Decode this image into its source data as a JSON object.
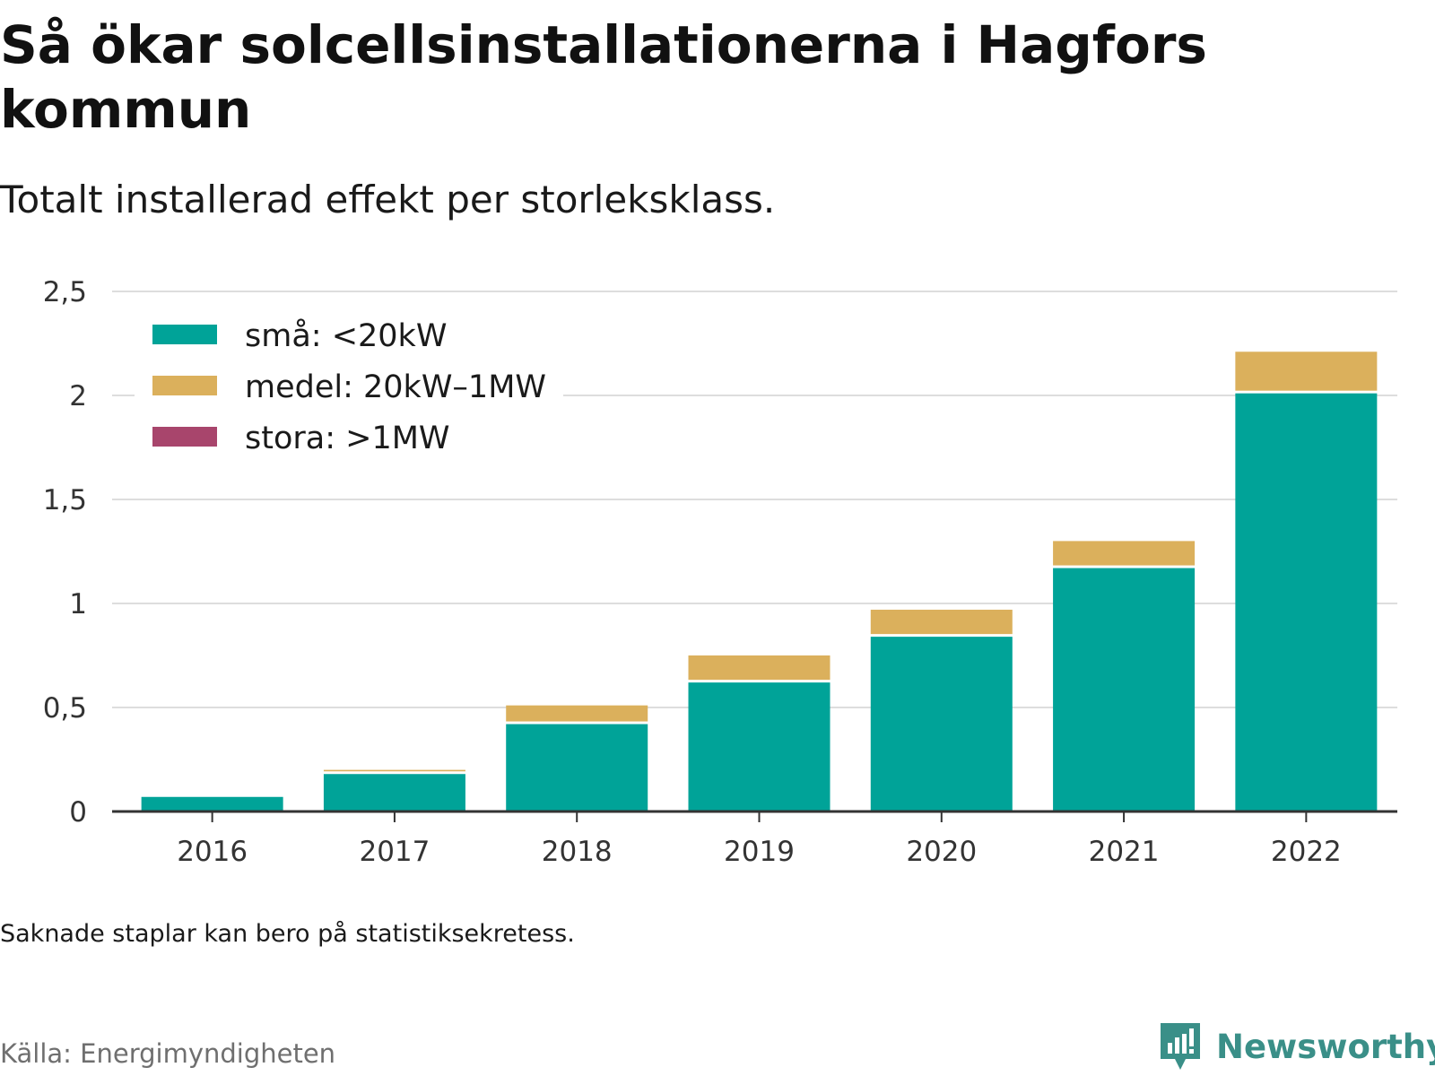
{
  "header": {
    "title": "Så ökar solcellsinstallationerna i Hagfors kommun",
    "subtitle": "Totalt installerad effekt per storleksklass."
  },
  "footer": {
    "note": "Saknade staplar kan bero på statistiksekretess.",
    "source": "Källa: Energimyndigheten",
    "brand": "Newsworthy"
  },
  "colors": {
    "small": "#00a398",
    "medium": "#dbb05c",
    "large": "#a8456c",
    "grid": "#dddddd",
    "axis": "#333333"
  },
  "chart_data": {
    "type": "bar",
    "stacked": true,
    "categories": [
      "2016",
      "2017",
      "2018",
      "2019",
      "2020",
      "2021",
      "2022"
    ],
    "series": [
      {
        "name": "små: <20kW",
        "color": "#00a398",
        "values": [
          0.07,
          0.18,
          0.42,
          0.62,
          0.84,
          1.17,
          2.01
        ]
      },
      {
        "name": "medel: 20kW–1MW",
        "color": "#dbb05c",
        "values": [
          0,
          0.02,
          0.09,
          0.13,
          0.13,
          0.13,
          0.2
        ]
      },
      {
        "name": "stora: >1MW",
        "color": "#a8456c",
        "values": [
          0,
          0,
          0,
          0,
          0,
          0,
          0
        ]
      }
    ],
    "ylim": [
      0,
      2.5
    ],
    "yticks": [
      0,
      0.5,
      1,
      1.5,
      2,
      2.5
    ],
    "ytick_labels": [
      "0",
      "0,5",
      "1",
      "1,5",
      "2",
      "2,5"
    ],
    "grid": true,
    "legend": "top-left"
  }
}
